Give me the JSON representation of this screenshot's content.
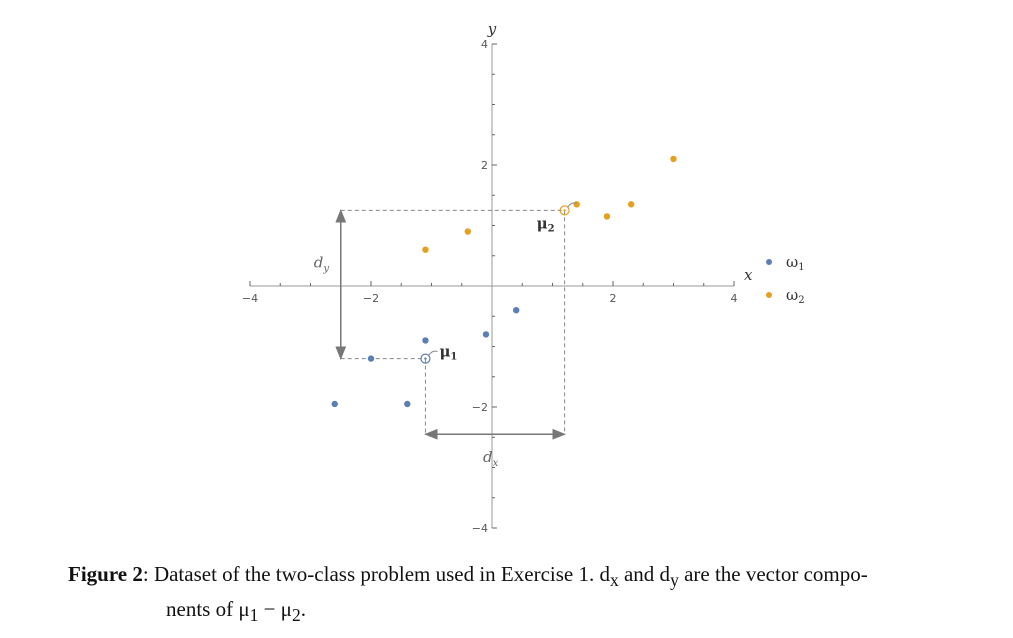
{
  "chart_data": {
    "type": "scatter",
    "xlabel": "x",
    "ylabel": "y",
    "xlim": [
      -4,
      4
    ],
    "ylim": [
      -4,
      4
    ],
    "x_ticks": [
      -4,
      -2,
      2,
      4
    ],
    "y_ticks": [
      -4,
      -2,
      2,
      4
    ],
    "x_tick_labels": [
      "−4",
      "−2",
      "2",
      "4"
    ],
    "y_tick_labels": [
      "−4",
      "−2",
      "2",
      "4"
    ],
    "grid": false,
    "legend_position": "right",
    "series": [
      {
        "name": "ω1",
        "color": "#5b7fb5",
        "points": [
          [
            -2.6,
            -1.95
          ],
          [
            -2.0,
            -1.2
          ],
          [
            -1.1,
            -0.9
          ],
          [
            -1.4,
            -1.95
          ],
          [
            -0.1,
            -0.8
          ],
          [
            0.4,
            -0.4
          ]
        ]
      },
      {
        "name": "ω2",
        "color": "#e6a020",
        "points": [
          [
            -1.1,
            0.6
          ],
          [
            -0.4,
            0.9
          ],
          [
            1.4,
            1.35
          ],
          [
            1.9,
            1.15
          ],
          [
            2.3,
            1.35
          ],
          [
            3.0,
            2.1
          ]
        ]
      }
    ],
    "means": [
      {
        "label": "μ1",
        "x": -1.1,
        "y": -1.2,
        "color": "#5b7fb5"
      },
      {
        "label": "μ2",
        "x": 1.2,
        "y": 1.25,
        "color": "#e6a020"
      }
    ],
    "annotations": {
      "dx_label": "dx",
      "dy_label": "dy"
    }
  },
  "caption": {
    "label": "Figure 2",
    "text_line1": ": Dataset of the two-class problem used in Exercise 1. d",
    "sub_x": "x",
    "text_and": " and d",
    "sub_y": "y",
    "text_end1": " are the vector compo-",
    "text_line2": "nents of μ",
    "sub_1": "1",
    "minus": " − μ",
    "sub_2": "2",
    "period": "."
  }
}
